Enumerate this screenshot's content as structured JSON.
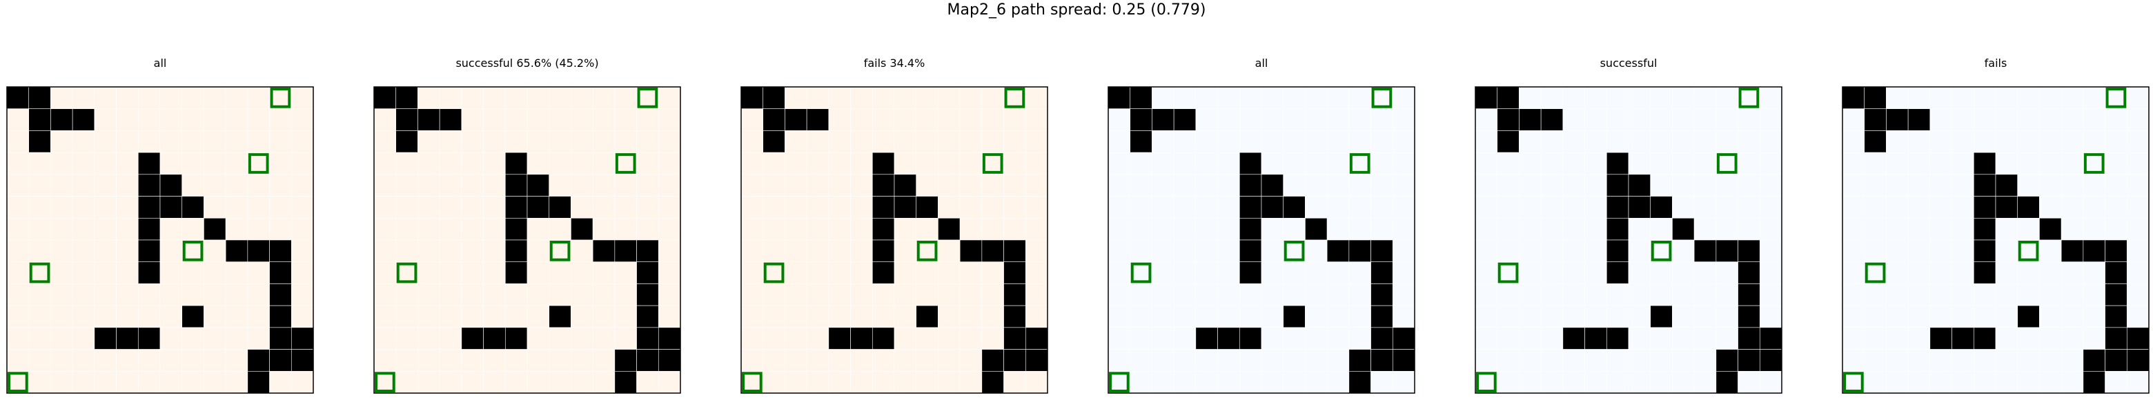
{
  "figure": {
    "suptitle": "Map2_6 path spread: 0.25 (0.779)"
  },
  "colors": {
    "wall": "#000000",
    "goal": "#008000",
    "grid": "#ffffff",
    "reds_scale": [
      "#fff5eb",
      "#fdd9b4",
      "#fda363",
      "#f16913",
      "#c93e0f",
      "#a3030b",
      "#67000d"
    ],
    "blues_scale": [
      "#f7fbff",
      "#deebf7",
      "#c6dbef",
      "#9ecae1",
      "#6baed6",
      "#3182bd",
      "#08519c",
      "#08306b"
    ]
  },
  "chart_data": [
    {
      "type": "heatmap",
      "title": "all",
      "colormap": "Reds",
      "grid": {
        "rows": 14,
        "cols": 14
      }
    },
    {
      "type": "heatmap",
      "title": "successful 65.6% (45.2%)",
      "colormap": "Reds",
      "grid": {
        "rows": 14,
        "cols": 14
      }
    },
    {
      "type": "heatmap",
      "title": "fails 34.4%",
      "colormap": "Reds",
      "grid": {
        "rows": 14,
        "cols": 14
      }
    },
    {
      "type": "heatmap",
      "title": "all",
      "colormap": "Blues",
      "grid": {
        "rows": 14,
        "cols": 14
      }
    },
    {
      "type": "heatmap",
      "title": "successful",
      "colormap": "Blues",
      "grid": {
        "rows": 14,
        "cols": 14
      }
    },
    {
      "type": "heatmap",
      "title": "fails",
      "colormap": "Blues",
      "grid": {
        "rows": 14,
        "cols": 14
      }
    }
  ],
  "map": {
    "walls": [
      [
        0,
        0
      ],
      [
        0,
        1
      ],
      [
        1,
        1
      ],
      [
        1,
        2
      ],
      [
        1,
        3
      ],
      [
        2,
        1
      ],
      [
        3,
        6
      ],
      [
        4,
        6
      ],
      [
        4,
        7
      ],
      [
        5,
        6
      ],
      [
        5,
        7
      ],
      [
        5,
        8
      ],
      [
        6,
        6
      ],
      [
        7,
        6
      ],
      [
        6,
        9
      ],
      [
        7,
        6
      ],
      [
        7,
        10
      ],
      [
        7,
        11
      ],
      [
        7,
        12
      ],
      [
        8,
        6
      ],
      [
        8,
        12
      ],
      [
        9,
        12
      ],
      [
        10,
        12
      ],
      [
        11,
        12
      ],
      [
        10,
        8
      ],
      [
        11,
        4
      ],
      [
        11,
        5
      ],
      [
        11,
        6
      ],
      [
        11,
        13
      ],
      [
        12,
        11
      ],
      [
        12,
        12
      ],
      [
        12,
        13
      ],
      [
        13,
        11
      ]
    ],
    "goals": [
      [
        0,
        12
      ],
      [
        3,
        11
      ],
      [
        7,
        8
      ],
      [
        8,
        1
      ],
      [
        13,
        0
      ]
    ]
  }
}
